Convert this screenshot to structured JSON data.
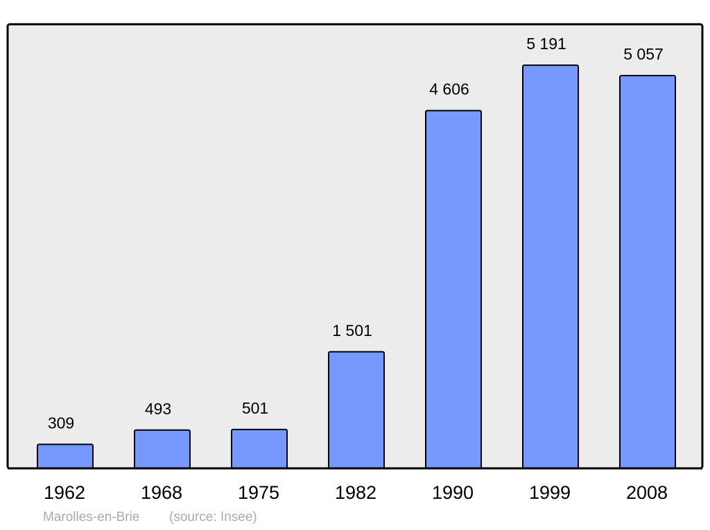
{
  "chart_data": {
    "type": "bar",
    "categories": [
      "1962",
      "1968",
      "1975",
      "1982",
      "1990",
      "1999",
      "2008"
    ],
    "values": [
      309,
      493,
      501,
      1501,
      4606,
      5191,
      5057
    ],
    "value_labels": [
      "309",
      "493",
      "501",
      "1 501",
      "4 606",
      "5 191",
      "5 057"
    ],
    "color": "#7799ff",
    "ylim": [
      0,
      5718
    ],
    "caption": "Marolles-en-Brie",
    "source": "(source: Insee)"
  }
}
